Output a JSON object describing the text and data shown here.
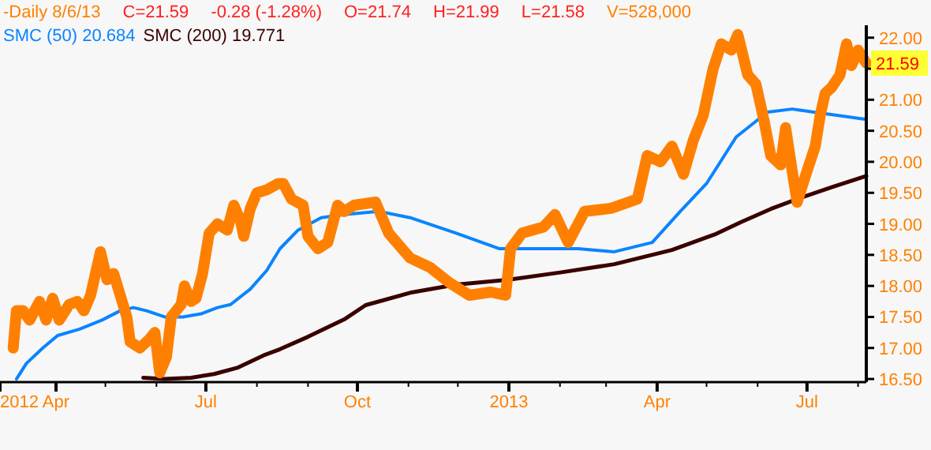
{
  "chart_data": {
    "type": "line",
    "annotations": [
      "C=21.59",
      "-0.28 (-1.28%)",
      "O=21.74",
      "H=21.99",
      "L=21.58",
      "V=528,000",
      {
        "text": "21.59",
        "x": "2013-08-06",
        "y": 21.59
      }
    ],
    "xlim": [
      "2012-02-27",
      "2013-08-06"
    ],
    "xticks": [
      {
        "value": "2012-02-27",
        "label": "2012"
      },
      {
        "value": "2012-04-01",
        "label": "Apr"
      },
      {
        "value": "2012-05-01",
        "label": null
      },
      {
        "value": "2012-06-01",
        "label": null
      },
      {
        "value": "2012-07-01",
        "label": "Jul"
      },
      {
        "value": "2012-08-01",
        "label": null
      },
      {
        "value": "2012-09-01",
        "label": null
      },
      {
        "value": "2012-10-01",
        "label": "Oct"
      },
      {
        "value": "2012-11-01",
        "label": null
      },
      {
        "value": "2012-12-01",
        "label": null
      },
      {
        "value": "2013-01-01",
        "label": "2013"
      },
      {
        "value": "2013-02-01",
        "label": null
      },
      {
        "value": "2013-03-01",
        "label": null
      },
      {
        "value": "2013-04-01",
        "label": "Apr"
      },
      {
        "value": "2013-05-01",
        "label": null
      },
      {
        "value": "2013-06-01",
        "label": null
      },
      {
        "value": "2013-07-01",
        "label": "Jul"
      },
      {
        "value": "2013-08-01",
        "label": null
      }
    ],
    "ylim": [
      16.45,
      22.2
    ],
    "yticks": [
      {
        "value": 16.5,
        "label": "16.50"
      },
      {
        "value": 17,
        "label": "17.00"
      },
      {
        "value": 17.5,
        "label": "17.50"
      },
      {
        "value": 18,
        "label": "18.00"
      },
      {
        "value": 18.5,
        "label": "18.50"
      },
      {
        "value": 19,
        "label": "19.00"
      },
      {
        "value": 19.5,
        "label": "19.50"
      },
      {
        "value": 20,
        "label": "20.00"
      },
      {
        "value": 20.5,
        "label": "20.50"
      },
      {
        "value": 21,
        "label": "21.00"
      },
      {
        "value": 21.5,
        "label": null
      },
      {
        "value": 22,
        "label": "22.00"
      }
    ],
    "legend": "top left",
    "series": [
      {
        "name": "-Daily 8/6/13",
        "color": "#ff8000",
        "x": [
          "2012-03-06",
          "2012-03-08",
          "2012-03-12",
          "2012-03-16",
          "2012-03-22",
          "2012-03-26",
          "2012-03-30",
          "2012-04-03",
          "2012-04-09",
          "2012-04-14",
          "2012-04-18",
          "2012-04-22",
          "2012-04-28",
          "2012-05-02",
          "2012-05-06",
          "2012-05-10",
          "2012-05-14",
          "2012-05-16",
          "2012-05-22",
          "2012-05-28",
          "2012-05-31",
          "2012-06-03",
          "2012-06-07",
          "2012-06-10",
          "2012-06-16",
          "2012-06-18",
          "2012-06-22",
          "2012-06-25",
          "2012-06-29",
          "2012-07-03",
          "2012-07-08",
          "2012-07-14",
          "2012-07-18",
          "2012-07-22",
          "2012-07-24",
          "2012-07-28",
          "2012-08-01",
          "2012-08-07",
          "2012-08-14",
          "2012-08-17",
          "2012-08-22",
          "2012-08-29",
          "2012-09-01",
          "2012-09-07",
          "2012-09-13",
          "2012-09-19",
          "2012-09-23",
          "2012-09-29",
          "2012-10-12",
          "2012-10-20",
          "2012-11-02",
          "2012-11-14",
          "2012-11-26",
          "2012-12-08",
          "2012-12-21",
          "2012-12-30",
          "2013-01-02",
          "2013-01-09",
          "2013-01-22",
          "2013-01-29",
          "2013-02-06",
          "2013-02-16",
          "2013-03-04",
          "2013-03-20",
          "2013-03-26",
          "2013-04-03",
          "2013-04-10",
          "2013-04-17",
          "2013-04-23",
          "2013-04-29",
          "2013-05-05",
          "2013-05-10",
          "2013-05-16",
          "2013-05-20",
          "2013-05-26",
          "2013-05-31",
          "2013-06-05",
          "2013-06-09",
          "2013-06-15",
          "2013-06-18",
          "2013-06-22",
          "2013-06-25",
          "2013-07-01",
          "2013-07-06",
          "2013-07-09",
          "2013-07-12",
          "2013-07-16",
          "2013-07-21",
          "2013-07-25",
          "2013-07-28",
          "2013-08-01",
          "2013-08-06"
        ],
        "values": [
          17.0,
          17.6,
          17.6,
          17.45,
          17.75,
          17.45,
          17.8,
          17.45,
          17.7,
          17.75,
          17.6,
          17.85,
          18.55,
          18.1,
          18.2,
          17.85,
          17.5,
          17.1,
          17.0,
          17.15,
          17.25,
          16.6,
          16.85,
          17.5,
          17.7,
          18.0,
          17.75,
          17.8,
          18.2,
          18.85,
          19.0,
          18.9,
          19.3,
          19.05,
          18.8,
          19.25,
          19.5,
          19.55,
          19.65,
          19.65,
          19.4,
          19.3,
          18.8,
          18.6,
          18.7,
          19.3,
          19.2,
          19.3,
          19.35,
          18.85,
          18.45,
          18.3,
          18.05,
          17.85,
          17.9,
          17.85,
          18.6,
          18.85,
          18.95,
          19.15,
          18.7,
          19.2,
          19.25,
          19.4,
          20.1,
          20.0,
          20.25,
          19.8,
          20.35,
          20.75,
          21.5,
          21.9,
          21.8,
          22.05,
          21.4,
          21.25,
          20.65,
          20.1,
          19.95,
          20.55,
          19.85,
          19.35,
          19.85,
          20.25,
          20.75,
          21.1,
          21.2,
          21.4,
          21.9,
          21.55,
          21.8,
          21.59
        ]
      },
      {
        "name": "SMC (50) 20.684",
        "color": "#0a84ff",
        "x": [
          "2012-03-08",
          "2012-03-14",
          "2012-03-24",
          "2012-04-02",
          "2012-04-15",
          "2012-04-29",
          "2012-05-10",
          "2012-05-18",
          "2012-05-26",
          "2012-06-06",
          "2012-06-17",
          "2012-06-28",
          "2012-07-08",
          "2012-07-16",
          "2012-07-28",
          "2012-08-07",
          "2012-08-15",
          "2012-08-26",
          "2012-09-09",
          "2012-09-23",
          "2012-10-14",
          "2012-11-02",
          "2012-11-30",
          "2012-12-26",
          "2013-01-19",
          "2013-02-12",
          "2013-03-06",
          "2013-03-29",
          "2013-04-15",
          "2013-05-01",
          "2013-05-19",
          "2013-06-07",
          "2013-06-22",
          "2013-07-05",
          "2013-07-19",
          "2013-08-06"
        ],
        "values": [
          16.5,
          16.75,
          17.0,
          17.2,
          17.3,
          17.45,
          17.6,
          17.65,
          17.6,
          17.5,
          17.5,
          17.55,
          17.65,
          17.7,
          17.95,
          18.25,
          18.6,
          18.9,
          19.1,
          19.15,
          19.2,
          19.1,
          18.85,
          18.6,
          18.6,
          18.6,
          18.55,
          18.7,
          19.2,
          19.65,
          20.4,
          20.8,
          20.85,
          20.8,
          20.75,
          20.684
        ]
      },
      {
        "name": "SMC (200) 19.771",
        "color": "#3a0000",
        "x": [
          "2012-05-24",
          "2012-06-06",
          "2012-06-22",
          "2012-07-06",
          "2012-07-20",
          "2012-08-05",
          "2012-08-15",
          "2012-09-01",
          "2012-09-23",
          "2012-10-06",
          "2012-11-02",
          "2012-11-30",
          "2013-01-01",
          "2013-02-02",
          "2013-03-06",
          "2013-04-10",
          "2013-05-06",
          "2013-05-22",
          "2013-06-09",
          "2013-06-26",
          "2013-07-16",
          "2013-08-06"
        ],
        "values": [
          16.52,
          16.5,
          16.52,
          16.58,
          16.68,
          16.88,
          16.98,
          17.18,
          17.46,
          17.69,
          17.89,
          18.02,
          18.1,
          18.22,
          18.35,
          18.58,
          18.83,
          19.03,
          19.24,
          19.41,
          19.59,
          19.771
        ]
      }
    ]
  }
}
